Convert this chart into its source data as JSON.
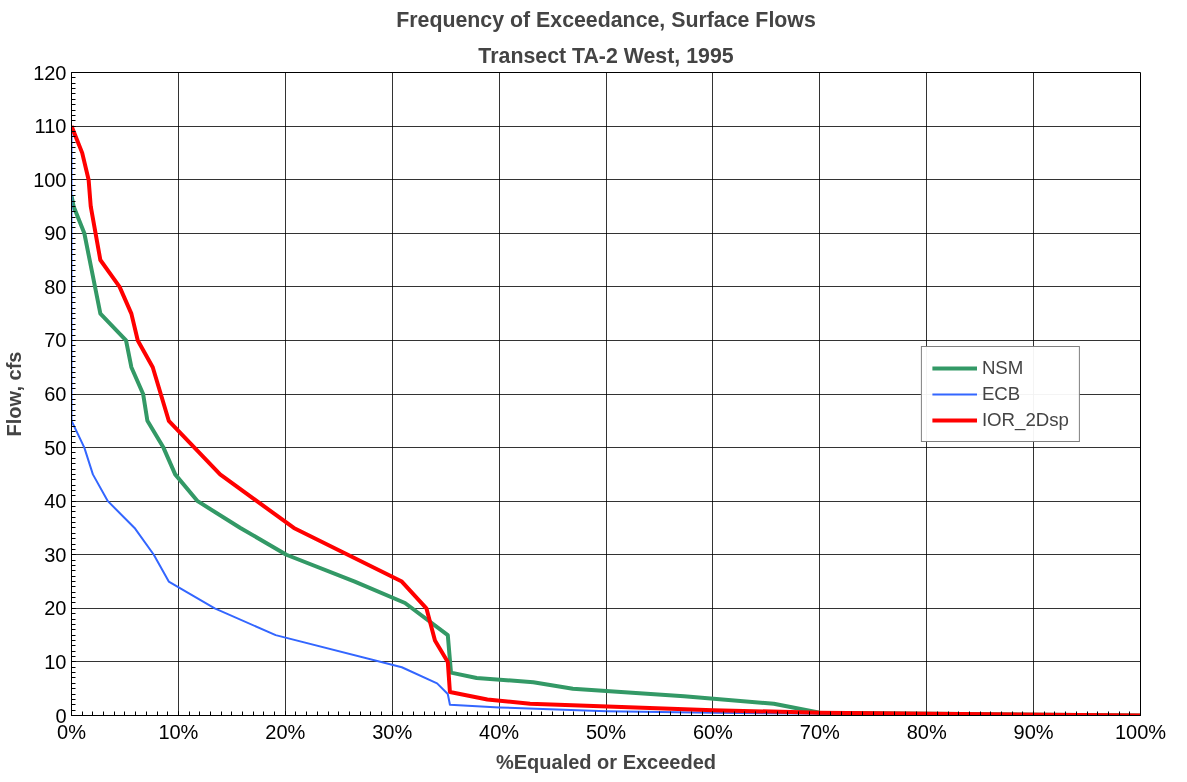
{
  "chart_data": {
    "type": "line",
    "title": "Frequency of Exceedance, Surface Flows",
    "subtitle": "Transect TA-2 West, 1995",
    "xlabel": "%Equaled or Exceeded",
    "ylabel": "Flow, cfs",
    "xlim": [
      0,
      100
    ],
    "ylim": [
      0,
      120
    ],
    "xticks": [
      {
        "value": 0,
        "label": "0%"
      },
      {
        "value": 10,
        "label": "10%"
      },
      {
        "value": 20,
        "label": "20%"
      },
      {
        "value": 30,
        "label": "30%"
      },
      {
        "value": 40,
        "label": "40%"
      },
      {
        "value": 50,
        "label": "50%"
      },
      {
        "value": 60,
        "label": "60%"
      },
      {
        "value": 70,
        "label": "70%"
      },
      {
        "value": 80,
        "label": "80%"
      },
      {
        "value": 90,
        "label": "90%"
      },
      {
        "value": 100,
        "label": "100%"
      }
    ],
    "yticks": [
      0,
      10,
      20,
      30,
      40,
      50,
      60,
      70,
      80,
      90,
      100,
      110,
      120
    ],
    "grid": true,
    "legend": "right",
    "marker": "none",
    "line_style": "solid",
    "series": [
      {
        "name": "NSM",
        "color": "#339966",
        "x": [
          0,
          0.2,
          1.2,
          2.7,
          5.1,
          5.6,
          6.7,
          7.1,
          8.6,
          9.7,
          11.8,
          15.8,
          20.1,
          26.5,
          31.2,
          35.2,
          35.5,
          37.9,
          43.2,
          46.9,
          57.3,
          65.7,
          70,
          100
        ],
        "values": [
          97,
          95,
          90,
          75,
          70,
          65,
          60,
          55,
          50,
          45,
          40,
          35,
          30,
          25,
          21,
          15,
          8,
          7,
          6.2,
          5,
          3.6,
          2.2,
          0.5,
          0
        ]
      },
      {
        "name": "ECB",
        "color": "#3366ff",
        "x": [
          0,
          0,
          0,
          1.2,
          2,
          3.4,
          5.9,
          7.7,
          9.1,
          13.4,
          19.1,
          30.9,
          34.2,
          35.2,
          35.4,
          40,
          50,
          60,
          100
        ],
        "values": [
          110,
          55,
          55,
          50,
          45,
          40,
          35,
          30,
          25,
          20,
          15,
          9,
          6,
          4,
          2,
          1.5,
          0.8,
          0.5,
          0
        ]
      },
      {
        "name": "IOR_2Dsp",
        "color": "#ff0000",
        "x": [
          0,
          1,
          1.6,
          1.8,
          2.7,
          4.5,
          5.6,
          6.2,
          7.6,
          9.1,
          13.9,
          20.8,
          30.9,
          33.2,
          34,
          35.2,
          35.4,
          38.9,
          42.9,
          60,
          70,
          100
        ],
        "values": [
          110,
          105,
          100,
          95,
          85,
          80,
          75,
          70,
          65,
          55,
          45,
          35,
          25,
          20,
          14,
          10,
          4.4,
          3,
          2.2,
          1,
          0.5,
          0
        ]
      }
    ]
  }
}
